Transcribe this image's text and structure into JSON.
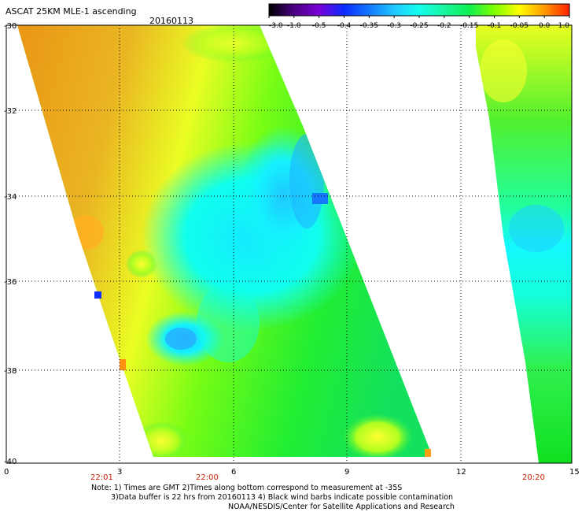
{
  "header": {
    "title": "ASCAT 25KM MLE-1 ascending",
    "date": "20160113"
  },
  "colorbar": {
    "labels": [
      "-3.0",
      "-1.0",
      "-0.5",
      "-0.4",
      "-0.35",
      "-0.3",
      "-0.25",
      "-0.2",
      "-0.15",
      "-0.1",
      "-0.05",
      "0.0",
      "1.0"
    ],
    "colors": [
      "#000000",
      "#4b0082",
      "#7a00d8",
      "#0a2bff",
      "#1478ff",
      "#1ec8ff",
      "#14ffee",
      "#18f5a0",
      "#10f050",
      "#7dff00",
      "#ffff00",
      "#ff9a00",
      "#ff2000"
    ]
  },
  "map": {
    "y_ticks": [
      "-30",
      "-32",
      "-34",
      "-36",
      "-38",
      "-40"
    ],
    "x_ticks": [
      "0",
      "3",
      "6",
      "9",
      "12",
      "15"
    ],
    "time_labels": [
      "22:01",
      "22:00",
      "20:20"
    ],
    "time_color": "#c81e00"
  },
  "notes": {
    "line1": "Note: 1) Times are GMT 2)Times along bottom correspond to measurement at -35S",
    "line2": "3)Data buffer is 22 hrs from 20160113 4) Black wind barbs indicate possible contamination",
    "line3": "NOAA/NESDIS/Center for Satellite Applications and Research"
  }
}
